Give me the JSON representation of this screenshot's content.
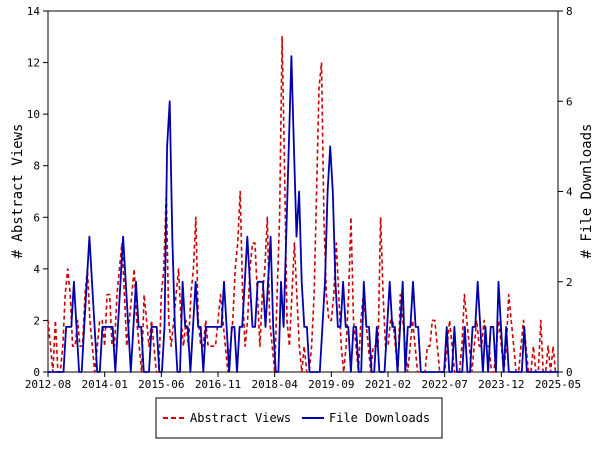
{
  "chart_data": {
    "type": "line",
    "title": "",
    "x_tick_labels": [
      "2012-08",
      "2014-01",
      "2015-06",
      "2016-11",
      "2018-04",
      "2019-09",
      "2021-02",
      "2022-07",
      "2023-12",
      "2025-05"
    ],
    "y_left": {
      "label": "# Abstract Views",
      "range": [
        0,
        14
      ],
      "ticks": [
        0,
        2,
        4,
        6,
        8,
        10,
        12,
        14
      ]
    },
    "y_right": {
      "label": "# File Downloads",
      "range": [
        0,
        8
      ],
      "ticks": [
        0,
        2,
        4,
        6,
        8
      ]
    },
    "legend_position": "bottom-center",
    "grid": false,
    "series": [
      {
        "name": "Abstract Views",
        "axis": "left",
        "color": "#cc0000",
        "style": "dashed",
        "start_month": "2012-08",
        "values": [
          2,
          1,
          0,
          2,
          0,
          0,
          1,
          3,
          4,
          3,
          1,
          1,
          2,
          1,
          1,
          3,
          4,
          2,
          1,
          0,
          1,
          2,
          2,
          1,
          3,
          3,
          1,
          1,
          3,
          4,
          5,
          3,
          1,
          2,
          3,
          4,
          2,
          1,
          0,
          3,
          2,
          1,
          2,
          1,
          0,
          0,
          3,
          4,
          7,
          2,
          1,
          2,
          3,
          4,
          2,
          1,
          2,
          1,
          3,
          4,
          6,
          2,
          1,
          1,
          2,
          1,
          1,
          1,
          1,
          2,
          3,
          2,
          1,
          0,
          1,
          2,
          4,
          5,
          7,
          3,
          1,
          2,
          4,
          5,
          5,
          3,
          1,
          3,
          4,
          6,
          2,
          1,
          0,
          3,
          6,
          13,
          8,
          2,
          1,
          3,
          5,
          3,
          1,
          0,
          1,
          0,
          0,
          1,
          3,
          7,
          11,
          12,
          6,
          3,
          2,
          2,
          3,
          5,
          3,
          1,
          0,
          1,
          3,
          6,
          2,
          1,
          0,
          2,
          3,
          2,
          1,
          0,
          1,
          1,
          1,
          6,
          3,
          1,
          1,
          2,
          2,
          1,
          0,
          3,
          2,
          1,
          0,
          1,
          2,
          1,
          0,
          0,
          0,
          0,
          1,
          1,
          2,
          2,
          1,
          0,
          0,
          0,
          1,
          2,
          1,
          0,
          0,
          0,
          1,
          3,
          2,
          1,
          0,
          1,
          2,
          1,
          1,
          2,
          1,
          1,
          0,
          0,
          1,
          2,
          1,
          0,
          1,
          3,
          2,
          1,
          0,
          0,
          1,
          2,
          1,
          0,
          0,
          1,
          0,
          0,
          2,
          0,
          0,
          1,
          0,
          1,
          0,
          0
        ]
      },
      {
        "name": "File Downloads",
        "axis": "right",
        "color": "#0000aa",
        "style": "solid",
        "start_month": "2012-08",
        "values": [
          0,
          0,
          0,
          0,
          0,
          0,
          0,
          1,
          1,
          1,
          2,
          1,
          0,
          0,
          1,
          2,
          3,
          2,
          1,
          0,
          0,
          1,
          1,
          1,
          1,
          1,
          0,
          1,
          2,
          3,
          2,
          1,
          0,
          1,
          2,
          1,
          1,
          0,
          0,
          0,
          1,
          1,
          1,
          0,
          0,
          1,
          5,
          6,
          3,
          1,
          0,
          0,
          2,
          1,
          1,
          0,
          1,
          2,
          1,
          1,
          0,
          1,
          1,
          1,
          1,
          1,
          1,
          1,
          2,
          1,
          0,
          1,
          1,
          0,
          1,
          1,
          2,
          3,
          2,
          1,
          1,
          2,
          2,
          2,
          1,
          2,
          3,
          1,
          0,
          0,
          2,
          1,
          3,
          5,
          7,
          5,
          3,
          4,
          2,
          1,
          1,
          0,
          0,
          0,
          0,
          0,
          1,
          2,
          4,
          5,
          4,
          2,
          1,
          1,
          2,
          1,
          1,
          0,
          1,
          1,
          0,
          0,
          2,
          1,
          1,
          0,
          0,
          1,
          0,
          0,
          0,
          1,
          2,
          1,
          1,
          0,
          1,
          2,
          0,
          1,
          1,
          2,
          1,
          1,
          0,
          0,
          0,
          0,
          0,
          0,
          0,
          0,
          0,
          0,
          1,
          0,
          0,
          1,
          0,
          0,
          0,
          1,
          0,
          0,
          1,
          1,
          2,
          1,
          0,
          1,
          0,
          1,
          1,
          0,
          2,
          1,
          0,
          1,
          0,
          0,
          0,
          0,
          0,
          0,
          1,
          0,
          0,
          0,
          0,
          0,
          0,
          0,
          0,
          0,
          0,
          0,
          0,
          0
        ]
      }
    ]
  }
}
